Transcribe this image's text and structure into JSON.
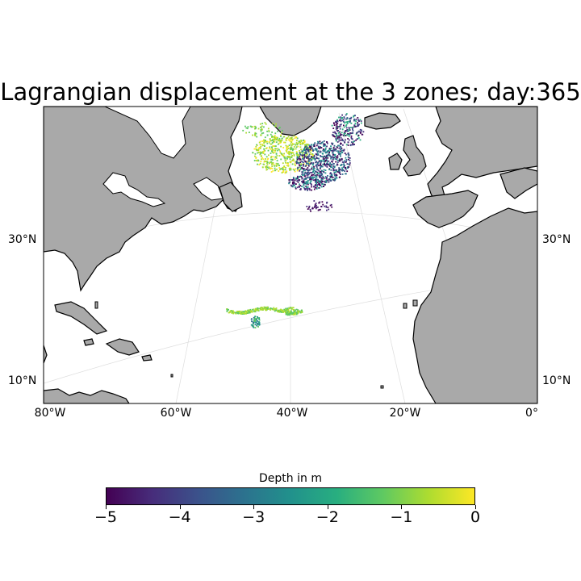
{
  "title": "Lagrangian displacement at the 3 zones; day:365",
  "lat_labels": [
    "30°N",
    "10°N"
  ],
  "lon_labels": [
    "80°W",
    "60°W",
    "40°W",
    "20°W",
    "0°"
  ],
  "colorbar": {
    "label": "Depth in m",
    "ticks": [
      "−5",
      "−4",
      "−3",
      "−2",
      "−1",
      "0"
    ],
    "range": [
      -5,
      0
    ],
    "colormap": "viridis"
  },
  "colors": {
    "land": "#a9a9a9",
    "ocean": "#ffffff",
    "coast": "#000000"
  }
}
